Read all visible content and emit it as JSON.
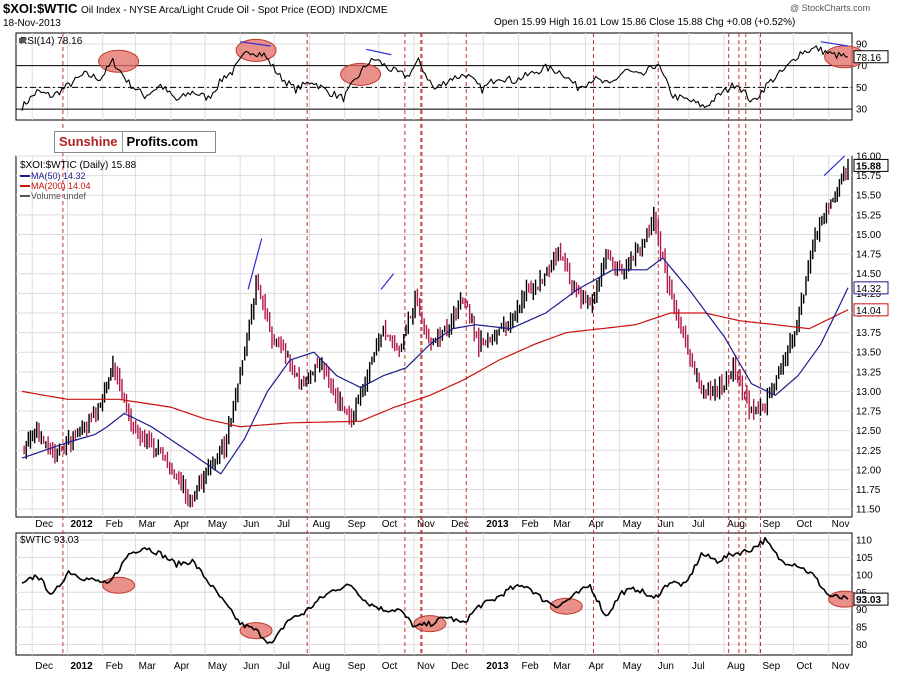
{
  "header": {
    "symbol": "$XOI:$WTIC",
    "description": "Oil Index - NYSE Arca/Light Crude Oil - Spot Price (EOD)",
    "exchange": "INDX/CME",
    "date": "18-Nov-2013",
    "ohlc_text": "Open 15.99  High 16.01  Low 15.86  Close 15.88  Chg +0.08 (+0.52%)",
    "watermark": "@ StockCharts.com"
  },
  "logo": {
    "part1": "Sunshine",
    "part2": "Profits.com"
  },
  "colors": {
    "price": "#000000",
    "up_bar": "#000000",
    "down_bar": "#b2184a",
    "ma50": "#1c1c8c",
    "ma200": "#cc1111",
    "vline": "#c0392b",
    "ellipse_fill": "#e06b61",
    "ellipse_stroke": "#c0392b",
    "trend": "#2b2bd8",
    "grid": "#dcdcdc",
    "frame": "#000000"
  },
  "chart_data": [
    {
      "type": "line",
      "panel": "RSI",
      "title": "RSI(14) 78.16",
      "ylim": [
        20,
        100
      ],
      "yticks": [
        30,
        50,
        70,
        90
      ],
      "ytick_labels": [
        "30",
        "50",
        "70",
        "90"
      ],
      "reference_lines": [
        30,
        50,
        70
      ],
      "last_value_label": "78.16",
      "points": [
        [
          "2011-11-22",
          32
        ],
        [
          "2011-12-05",
          46
        ],
        [
          "2011-12-19",
          42
        ],
        [
          "2012-01-02",
          52
        ],
        [
          "2012-01-16",
          62
        ],
        [
          "2012-01-30",
          58
        ],
        [
          "2012-02-10",
          74
        ],
        [
          "2012-02-24",
          54
        ],
        [
          "2012-03-09",
          42
        ],
        [
          "2012-03-23",
          52
        ],
        [
          "2012-04-06",
          38
        ],
        [
          "2012-04-20",
          46
        ],
        [
          "2012-05-04",
          40
        ],
        [
          "2012-05-18",
          60
        ],
        [
          "2012-05-25",
          64
        ],
        [
          "2012-06-08",
          84
        ],
        [
          "2012-06-22",
          80
        ],
        [
          "2012-07-06",
          60
        ],
        [
          "2012-07-20",
          48
        ],
        [
          "2012-08-03",
          56
        ],
        [
          "2012-08-17",
          46
        ],
        [
          "2012-08-31",
          40
        ],
        [
          "2012-09-14",
          62
        ],
        [
          "2012-09-21",
          72
        ],
        [
          "2012-09-28",
          76
        ],
        [
          "2012-10-12",
          66
        ],
        [
          "2012-10-26",
          60
        ],
        [
          "2012-11-05",
          74
        ],
        [
          "2012-11-19",
          48
        ],
        [
          "2012-12-03",
          58
        ],
        [
          "2012-12-17",
          62
        ],
        [
          "2012-12-31",
          48
        ],
        [
          "2013-01-14",
          60
        ],
        [
          "2013-01-28",
          56
        ],
        [
          "2013-02-11",
          62
        ],
        [
          "2013-02-25",
          68
        ],
        [
          "2013-03-11",
          64
        ],
        [
          "2013-03-25",
          50
        ],
        [
          "2013-04-08",
          58
        ],
        [
          "2013-04-22",
          52
        ],
        [
          "2013-05-06",
          66
        ],
        [
          "2013-05-20",
          60
        ],
        [
          "2013-06-03",
          72
        ],
        [
          "2013-06-17",
          42
        ],
        [
          "2013-07-01",
          38
        ],
        [
          "2013-07-15",
          32
        ],
        [
          "2013-07-29",
          44
        ],
        [
          "2013-08-12",
          54
        ],
        [
          "2013-08-26",
          36
        ],
        [
          "2013-09-09",
          54
        ],
        [
          "2013-09-23",
          66
        ],
        [
          "2013-10-07",
          82
        ],
        [
          "2013-10-21",
          86
        ],
        [
          "2013-11-04",
          80
        ],
        [
          "2013-11-18",
          78.16
        ]
      ],
      "highlights": [
        "2012-02",
        "2012-06",
        "2012-09",
        "2013-11"
      ]
    },
    {
      "type": "bar",
      "panel": "price",
      "title": "$XOI:$WTIC (Daily) 15.88",
      "ylim": [
        11.4,
        16.0
      ],
      "yticks": [
        11.5,
        11.75,
        12.0,
        12.25,
        12.5,
        12.75,
        13.0,
        13.25,
        13.5,
        13.75,
        14.0,
        14.25,
        14.5,
        14.75,
        15.0,
        15.25,
        15.5,
        15.75,
        16.0
      ],
      "ytick_labels": [
        "11.50",
        "11.75",
        "12.00",
        "12.25",
        "12.50",
        "12.75",
        "13.00",
        "13.25",
        "13.50",
        "13.75",
        "14.00",
        "14.25",
        "14.50",
        "14.75",
        "15.00",
        "15.25",
        "15.50",
        "15.75",
        "16.00"
      ],
      "legend": [
        "MA(50) 14.32",
        "MA(200) 14.04",
        "Volume undef"
      ],
      "last_labels": {
        "close": "15.88",
        "ma50": "14.32",
        "ma200": "14.04"
      },
      "close_path": [
        [
          "2011-11-22",
          12.25
        ],
        [
          "2011-12-05",
          12.45
        ],
        [
          "2011-12-19",
          12.2
        ],
        [
          "2012-01-02",
          12.35
        ],
        [
          "2012-01-16",
          12.55
        ],
        [
          "2012-01-30",
          12.85
        ],
        [
          "2012-02-10",
          13.35
        ],
        [
          "2012-02-24",
          12.7
        ],
        [
          "2012-03-09",
          12.35
        ],
        [
          "2012-03-23",
          12.25
        ],
        [
          "2012-04-06",
          11.9
        ],
        [
          "2012-04-20",
          11.6
        ],
        [
          "2012-05-04",
          12.05
        ],
        [
          "2012-05-18",
          12.3
        ],
        [
          "2012-06-01",
          13.2
        ],
        [
          "2012-06-15",
          14.4
        ],
        [
          "2012-06-29",
          13.7
        ],
        [
          "2012-07-13",
          13.4
        ],
        [
          "2012-07-27",
          13.1
        ],
        [
          "2012-08-10",
          13.4
        ],
        [
          "2012-08-24",
          12.9
        ],
        [
          "2012-09-07",
          12.7
        ],
        [
          "2012-09-21",
          13.2
        ],
        [
          "2012-10-05",
          13.8
        ],
        [
          "2012-10-19",
          13.5
        ],
        [
          "2012-11-02",
          14.2
        ],
        [
          "2012-11-16",
          13.6
        ],
        [
          "2012-11-30",
          13.8
        ],
        [
          "2012-12-14",
          14.2
        ],
        [
          "2012-12-28",
          13.6
        ],
        [
          "2013-01-11",
          13.7
        ],
        [
          "2013-01-25",
          13.9
        ],
        [
          "2013-02-08",
          14.3
        ],
        [
          "2013-02-22",
          14.4
        ],
        [
          "2013-03-08",
          14.8
        ],
        [
          "2013-03-22",
          14.3
        ],
        [
          "2013-04-05",
          14.1
        ],
        [
          "2013-04-19",
          14.7
        ],
        [
          "2013-05-03",
          14.5
        ],
        [
          "2013-05-17",
          14.8
        ],
        [
          "2013-05-31",
          15.2
        ],
        [
          "2013-06-14",
          14.3
        ],
        [
          "2013-06-28",
          13.6
        ],
        [
          "2013-07-12",
          13.0
        ],
        [
          "2013-07-26",
          13.0
        ],
        [
          "2013-08-09",
          13.3
        ],
        [
          "2013-08-23",
          12.8
        ],
        [
          "2013-09-06",
          12.8
        ],
        [
          "2013-09-20",
          13.3
        ],
        [
          "2013-10-04",
          13.8
        ],
        [
          "2013-10-18",
          14.9
        ],
        [
          "2013-11-01",
          15.4
        ],
        [
          "2013-11-18",
          15.88
        ]
      ],
      "ma50": [
        [
          "2011-11-22",
          12.15
        ],
        [
          "2012-01-01",
          12.35
        ],
        [
          "2012-01-25",
          12.45
        ],
        [
          "2012-02-05",
          12.55
        ],
        [
          "2012-02-20",
          12.72
        ],
        [
          "2012-03-15",
          12.55
        ],
        [
          "2012-04-15",
          12.25
        ],
        [
          "2012-05-15",
          11.95
        ],
        [
          "2012-06-05",
          12.4
        ],
        [
          "2012-06-25",
          13.0
        ],
        [
          "2012-07-15",
          13.4
        ],
        [
          "2012-08-05",
          13.5
        ],
        [
          "2012-08-25",
          13.2
        ],
        [
          "2012-09-15",
          13.05
        ],
        [
          "2012-10-05",
          13.2
        ],
        [
          "2012-10-25",
          13.3
        ],
        [
          "2012-11-15",
          13.6
        ],
        [
          "2012-12-05",
          13.8
        ],
        [
          "2012-12-25",
          13.85
        ],
        [
          "2013-01-25",
          13.8
        ],
        [
          "2013-02-25",
          14.0
        ],
        [
          "2013-03-25",
          14.3
        ],
        [
          "2013-04-25",
          14.55
        ],
        [
          "2013-05-25",
          14.55
        ],
        [
          "2013-06-08",
          14.7
        ],
        [
          "2013-07-01",
          14.3
        ],
        [
          "2013-08-01",
          13.7
        ],
        [
          "2013-08-25",
          13.1
        ],
        [
          "2013-09-15",
          12.95
        ],
        [
          "2013-10-05",
          13.2
        ],
        [
          "2013-10-25",
          13.6
        ],
        [
          "2013-11-18",
          14.32
        ]
      ],
      "ma200": [
        [
          "2011-11-22",
          13.0
        ],
        [
          "2012-01-01",
          12.9
        ],
        [
          "2012-02-15",
          12.9
        ],
        [
          "2012-04-01",
          12.8
        ],
        [
          "2012-05-01",
          12.65
        ],
        [
          "2012-06-01",
          12.55
        ],
        [
          "2012-07-15",
          12.6
        ],
        [
          "2012-09-15",
          12.62
        ],
        [
          "2012-10-15",
          12.8
        ],
        [
          "2012-11-15",
          12.95
        ],
        [
          "2012-12-15",
          13.15
        ],
        [
          "2013-01-15",
          13.4
        ],
        [
          "2013-02-15",
          13.6
        ],
        [
          "2013-03-15",
          13.75
        ],
        [
          "2013-04-15",
          13.8
        ],
        [
          "2013-05-15",
          13.85
        ],
        [
          "2013-06-15",
          14.0
        ],
        [
          "2013-07-15",
          14.0
        ],
        [
          "2013-08-15",
          13.9
        ],
        [
          "2013-09-15",
          13.85
        ],
        [
          "2013-10-15",
          13.8
        ],
        [
          "2013-11-18",
          14.04
        ]
      ]
    },
    {
      "type": "line",
      "panel": "WTIC",
      "title": "$WTIC 93.03",
      "ylim": [
        77,
        112
      ],
      "yticks": [
        80,
        85,
        90,
        95,
        100,
        105,
        110
      ],
      "ytick_labels": [
        "80",
        "85",
        "90",
        "95",
        "100",
        "105",
        "110"
      ],
      "last_value_label": "93.03",
      "points": [
        [
          "2011-11-22",
          97
        ],
        [
          "2011-12-05",
          100
        ],
        [
          "2011-12-19",
          94
        ],
        [
          "2012-01-02",
          101
        ],
        [
          "2012-01-16",
          99
        ],
        [
          "2012-01-30",
          98
        ],
        [
          "2012-02-06",
          97
        ],
        [
          "2012-02-24",
          106
        ],
        [
          "2012-03-09",
          108
        ],
        [
          "2012-03-23",
          106
        ],
        [
          "2012-04-06",
          103
        ],
        [
          "2012-04-20",
          104
        ],
        [
          "2012-05-04",
          98
        ],
        [
          "2012-05-18",
          92
        ],
        [
          "2012-06-01",
          86
        ],
        [
          "2012-06-15",
          84
        ],
        [
          "2012-06-29",
          80
        ],
        [
          "2012-07-13",
          87
        ],
        [
          "2012-07-27",
          89
        ],
        [
          "2012-08-10",
          93
        ],
        [
          "2012-08-24",
          96
        ],
        [
          "2012-09-07",
          97
        ],
        [
          "2012-09-21",
          92
        ],
        [
          "2012-10-05",
          90
        ],
        [
          "2012-10-19",
          90
        ],
        [
          "2012-11-02",
          85
        ],
        [
          "2012-11-16",
          86
        ],
        [
          "2012-11-30",
          88
        ],
        [
          "2012-12-14",
          86
        ],
        [
          "2012-12-28",
          91
        ],
        [
          "2013-01-11",
          93
        ],
        [
          "2013-01-25",
          96
        ],
        [
          "2013-02-08",
          97
        ],
        [
          "2013-02-22",
          93
        ],
        [
          "2013-03-08",
          91
        ],
        [
          "2013-03-22",
          94
        ],
        [
          "2013-04-05",
          97
        ],
        [
          "2013-04-19",
          88
        ],
        [
          "2013-05-03",
          95
        ],
        [
          "2013-05-17",
          96
        ],
        [
          "2013-05-31",
          93
        ],
        [
          "2013-06-14",
          98
        ],
        [
          "2013-06-28",
          97
        ],
        [
          "2013-07-12",
          106
        ],
        [
          "2013-07-26",
          104
        ],
        [
          "2013-08-09",
          106
        ],
        [
          "2013-08-23",
          107
        ],
        [
          "2013-09-06",
          110
        ],
        [
          "2013-09-20",
          104
        ],
        [
          "2013-10-04",
          103
        ],
        [
          "2013-10-18",
          100
        ],
        [
          "2013-11-01",
          94
        ],
        [
          "2013-11-18",
          93.03
        ]
      ],
      "highlights": [
        "2012-02",
        "2012-06",
        "2012-11",
        "2013-03",
        "2013-11"
      ]
    }
  ],
  "x_axis": {
    "start": "2011-11-22",
    "end": "2013-11-18",
    "month_labels": [
      "Dec",
      "2012",
      "Feb",
      "Mar",
      "Apr",
      "May",
      "Jun",
      "Jul",
      "Aug",
      "Sep",
      "Oct",
      "Nov",
      "Dec",
      "2013",
      "Feb",
      "Mar",
      "Apr",
      "May",
      "Jun",
      "Jul",
      "Aug",
      "Sep",
      "Oct",
      "Nov"
    ],
    "month_dates": [
      "2011-12-01",
      "2012-01-01",
      "2012-02-01",
      "2012-03-01",
      "2012-04-01",
      "2012-05-01",
      "2012-06-01",
      "2012-07-01",
      "2012-08-01",
      "2012-09-01",
      "2012-10-01",
      "2012-11-01",
      "2012-12-01",
      "2013-01-01",
      "2013-02-01",
      "2013-03-01",
      "2013-04-01",
      "2013-05-01",
      "2013-06-01",
      "2013-07-01",
      "2013-08-01",
      "2013-09-01",
      "2013-10-01",
      "2013-11-01"
    ],
    "bold_labels": [
      "2012",
      "2013"
    ]
  },
  "marker_dates": [
    "2011-12-28",
    "2012-07-30",
    "2012-10-24",
    "2012-11-07",
    "2012-11-08",
    "2012-12-17",
    "2013-04-08",
    "2013-06-04",
    "2013-08-05",
    "2013-08-14",
    "2013-08-20",
    "2013-09-02"
  ],
  "trend_marks": [
    {
      "panel": "RSI",
      "from": [
        "2012-06-01",
        92
      ],
      "to": [
        "2012-06-28",
        88
      ]
    },
    {
      "panel": "RSI",
      "from": [
        "2012-09-20",
        85
      ],
      "to": [
        "2012-10-12",
        80
      ]
    },
    {
      "panel": "RSI",
      "from": [
        "2013-10-25",
        92
      ],
      "to": [
        "2013-11-18",
        88
      ]
    },
    {
      "panel": "price",
      "from": [
        "2012-06-08",
        14.3
      ],
      "to": [
        "2012-06-20",
        14.95
      ]
    },
    {
      "panel": "price",
      "from": [
        "2012-10-03",
        14.3
      ],
      "to": [
        "2012-10-14",
        14.5
      ]
    },
    {
      "panel": "price",
      "from": [
        "2013-10-28",
        15.75
      ],
      "to": [
        "2013-11-15",
        16.0
      ]
    }
  ]
}
